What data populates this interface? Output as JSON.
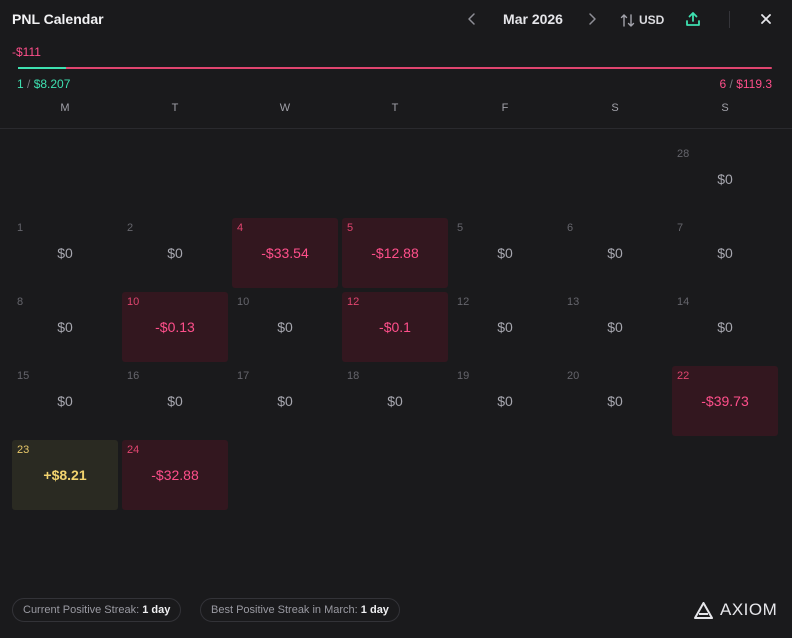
{
  "header": {
    "title": "PNL Calendar",
    "month": "Mar 2026",
    "currency": "USD",
    "prev_icon": "chevron-left-icon",
    "next_icon": "chevron-right-icon",
    "share_icon": "share-upload-icon",
    "close_icon": "close-icon"
  },
  "summary": {
    "total_pnl": "-$111",
    "positive_fraction": 0.064,
    "wins": {
      "count": "1",
      "sep": " / ",
      "amount": "$8.207"
    },
    "losses": {
      "count": "6",
      "sep": " / ",
      "amount": "$119.3"
    }
  },
  "weekdays": [
    "M",
    "T",
    "W",
    "T",
    "F",
    "S",
    "S"
  ],
  "days": [
    {
      "num": "28",
      "value": "$0",
      "state": "zero"
    },
    {
      "num": "1",
      "value": "$0",
      "state": "zero"
    },
    {
      "num": "2",
      "value": "$0",
      "state": "zero"
    },
    {
      "num": "4",
      "value": "-$33.54",
      "state": "neg"
    },
    {
      "num": "5",
      "value": "-$12.88",
      "state": "neg"
    },
    {
      "num": "5",
      "value": "$0",
      "state": "zero"
    },
    {
      "num": "6",
      "value": "$0",
      "state": "zero"
    },
    {
      "num": "7",
      "value": "$0",
      "state": "zero"
    },
    {
      "num": "8",
      "value": "$0",
      "state": "zero"
    },
    {
      "num": "10",
      "value": "-$0.13",
      "state": "neg"
    },
    {
      "num": "10",
      "value": "$0",
      "state": "zero"
    },
    {
      "num": "12",
      "value": "-$0.1",
      "state": "neg"
    },
    {
      "num": "12",
      "value": "$0",
      "state": "zero"
    },
    {
      "num": "13",
      "value": "$0",
      "state": "zero"
    },
    {
      "num": "14",
      "value": "$0",
      "state": "zero"
    },
    {
      "num": "15",
      "value": "$0",
      "state": "zero"
    },
    {
      "num": "16",
      "value": "$0",
      "state": "zero"
    },
    {
      "num": "17",
      "value": "$0",
      "state": "zero"
    },
    {
      "num": "18",
      "value": "$0",
      "state": "zero"
    },
    {
      "num": "19",
      "value": "$0",
      "state": "zero"
    },
    {
      "num": "20",
      "value": "$0",
      "state": "zero"
    },
    {
      "num": "22",
      "value": "-$39.73",
      "state": "neg"
    },
    {
      "num": "23",
      "value": "+$8.21",
      "state": "pos"
    },
    {
      "num": "24",
      "value": "-$32.88",
      "state": "neg"
    }
  ],
  "footer": {
    "current_streak_label": "Current Positive Streak:",
    "current_streak_value": "1 day",
    "best_streak_label": "Best Positive Streak in March:",
    "best_streak_value": "1 day",
    "brand": "AXIOM",
    "brand_icon": "axiom-logo-icon"
  },
  "colors": {
    "background": "#1a1a1c",
    "negative": "#ff4f8b",
    "positive": "#3ee0b0",
    "gain_day": "#f2d36e"
  }
}
